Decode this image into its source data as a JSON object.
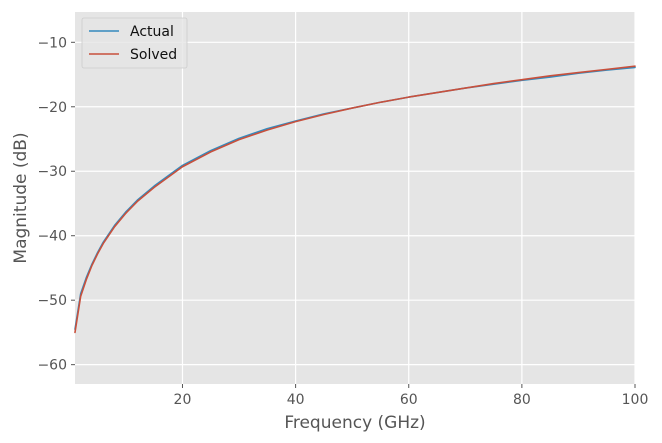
{
  "chart_data": {
    "type": "line",
    "title": "",
    "xlabel": "Frequency (GHz)",
    "ylabel": "Magnitude (dB)",
    "xlim": [
      1,
      100
    ],
    "ylim": [
      -63,
      -5.3
    ],
    "xticks": [
      20,
      40,
      60,
      80,
      100
    ],
    "xtick_labels": [
      "20",
      "40",
      "60",
      "80",
      "100"
    ],
    "yticks": [
      -60,
      -50,
      -40,
      -30,
      -20,
      -10
    ],
    "ytick_labels": [
      "−60",
      "−50",
      "−40",
      "−30",
      "−20",
      "−10"
    ],
    "grid": true,
    "legend_position": "top-left",
    "x": [
      1,
      2,
      3,
      4,
      5,
      6,
      8,
      10,
      12,
      15,
      20,
      25,
      30,
      35,
      40,
      45,
      50,
      55,
      60,
      65,
      70,
      75,
      80,
      85,
      90,
      95,
      100
    ],
    "series": [
      {
        "name": "Actual",
        "color": "#348abd",
        "values": [
          -54.5,
          -49.0,
          -46.5,
          -44.4,
          -42.6,
          -41.0,
          -38.4,
          -36.3,
          -34.5,
          -32.3,
          -29.1,
          -26.8,
          -24.9,
          -23.4,
          -22.2,
          -21.1,
          -20.2,
          -19.3,
          -18.5,
          -17.8,
          -17.1,
          -16.5,
          -15.9,
          -15.4,
          -14.8,
          -14.3,
          -13.9
        ]
      },
      {
        "name": "Solved",
        "color": "#c8503c",
        "values": [
          -55.0,
          -49.4,
          -46.8,
          -44.6,
          -42.8,
          -41.2,
          -38.6,
          -36.5,
          -34.7,
          -32.5,
          -29.3,
          -27.0,
          -25.1,
          -23.6,
          -22.3,
          -21.2,
          -20.2,
          -19.3,
          -18.5,
          -17.8,
          -17.1,
          -16.4,
          -15.8,
          -15.2,
          -14.7,
          -14.2,
          -13.7
        ]
      }
    ]
  }
}
